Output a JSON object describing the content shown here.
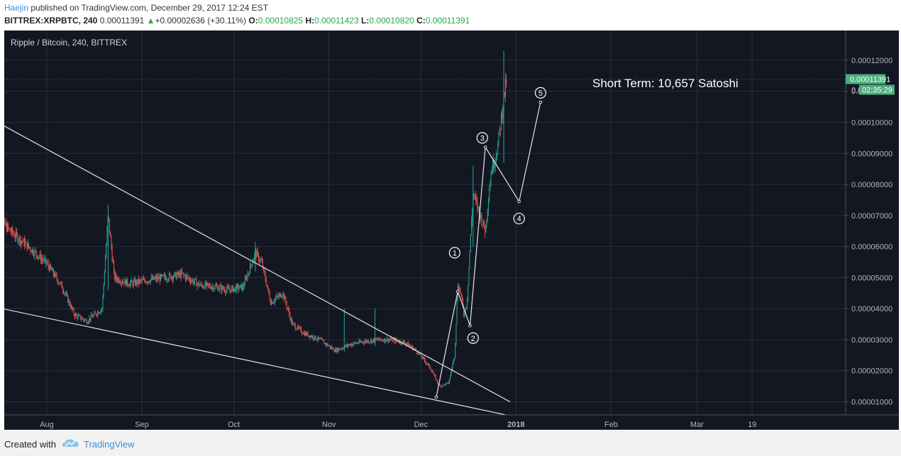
{
  "header": {
    "author": "Haejin",
    "published_text": " published on TradingView.com, December 29, 2017 12:24 EST",
    "symbol": "BITTREX:XRPBTC, 240",
    "last": "0.00011391",
    "up_arrow": "▲",
    "change": "+0.00002636 (+30.11%)",
    "o_label": "O:",
    "o_value": "0.00010825",
    "h_label": "H:",
    "h_value": "0.00011423",
    "l_label": "L:",
    "l_value": "0.00010820",
    "c_label": "C:",
    "c_value": "0.00011391"
  },
  "footer": {
    "created_with": "Created with",
    "brand": "TradingView"
  },
  "colors": {
    "background": "#131722",
    "grid": "#2a2e39",
    "up": "#26a69a",
    "down": "#ef5350",
    "price_tag": "#4caf7d",
    "drawing": "#e6e6e6"
  },
  "chart_data": {
    "type": "candlestick",
    "title": "Ripple / Bitcoin, 240, BITTREX",
    "annotation": "Short Term: 10,657 Satoshi",
    "x_ticks": [
      "Aug",
      "Sep",
      "Oct",
      "Nov",
      "Dec",
      "2018",
      "Feb",
      "Mar",
      "19"
    ],
    "y_ticks": [
      "0.00001000",
      "0.00002000",
      "0.00003000",
      "0.00004000",
      "0.00005000",
      "0.00006000",
      "0.00007000",
      "0.00008000",
      "0.00009000",
      "0.00010000",
      "0.00011000",
      "0.00012000"
    ],
    "y_values": [
      1e-05,
      2e-05,
      3e-05,
      4e-05,
      5e-05,
      6e-05,
      7e-05,
      8e-05,
      9e-05,
      0.0001,
      0.00011,
      0.00012
    ],
    "current_price_label": "0.00011391",
    "current_price": 0.00011391,
    "countdown_label": "02:35:29",
    "countdown_partial": "0.0",
    "price_path": [
      [
        "2017-07-15",
        7.05e-05
      ],
      [
        "2017-07-20",
        6.5e-05
      ],
      [
        "2017-07-26",
        6e-05
      ],
      [
        "2017-08-01",
        5.45e-05
      ],
      [
        "2017-08-06",
        4.7e-05
      ],
      [
        "2017-08-10",
        3.8e-05
      ],
      [
        "2017-08-14",
        3.6e-05
      ],
      [
        "2017-08-19",
        4e-05
      ],
      [
        "2017-08-21",
        7e-05
      ],
      [
        "2017-08-23",
        5e-05
      ],
      [
        "2017-08-28",
        4.8e-05
      ],
      [
        "2017-09-02",
        4.9e-05
      ],
      [
        "2017-09-08",
        5e-05
      ],
      [
        "2017-09-14",
        5.1e-05
      ],
      [
        "2017-09-20",
        4.75e-05
      ],
      [
        "2017-09-25",
        4.7e-05
      ],
      [
        "2017-09-29",
        4.6e-05
      ],
      [
        "2017-10-04",
        4.7e-05
      ],
      [
        "2017-10-08",
        5.8e-05
      ],
      [
        "2017-10-10",
        5.5e-05
      ],
      [
        "2017-10-13",
        4.2e-05
      ],
      [
        "2017-10-17",
        4.5e-05
      ],
      [
        "2017-10-20",
        3.5e-05
      ],
      [
        "2017-10-24",
        3.2e-05
      ],
      [
        "2017-10-29",
        3e-05
      ],
      [
        "2017-11-03",
        2.65e-05
      ],
      [
        "2017-11-08",
        2.85e-05
      ],
      [
        "2017-11-13",
        2.95e-05
      ],
      [
        "2017-11-17",
        3e-05
      ],
      [
        "2017-11-21",
        3e-05
      ],
      [
        "2017-11-26",
        2.9e-05
      ],
      [
        "2017-11-30",
        2.6e-05
      ],
      [
        "2017-12-04",
        2.1e-05
      ],
      [
        "2017-12-07",
        1.5e-05
      ],
      [
        "2017-12-10",
        1.6e-05
      ],
      [
        "2017-12-12",
        2.5e-05
      ],
      [
        "2017-12-13",
        4.8e-05
      ],
      [
        "2017-12-14",
        4.5e-05
      ],
      [
        "2017-12-15",
        3.8e-05
      ],
      [
        "2017-12-16",
        4.2e-05
      ],
      [
        "2017-12-17",
        6e-05
      ],
      [
        "2017-12-18",
        7.7e-05
      ],
      [
        "2017-12-20",
        7.1e-05
      ],
      [
        "2017-12-22",
        6.5e-05
      ],
      [
        "2017-12-23",
        7.6e-05
      ],
      [
        "2017-12-24",
        8.5e-05
      ],
      [
        "2017-12-25",
        8.8e-05
      ],
      [
        "2017-12-26",
        9.2e-05
      ],
      [
        "2017-12-28",
        0.000108
      ],
      [
        "2017-12-29",
        0.0001139
      ]
    ],
    "spikes": [
      [
        "2017-08-21",
        7.35e-05,
        4.6e-05
      ],
      [
        "2017-10-08",
        6.15e-05,
        5.2e-05
      ],
      [
        "2017-11-06",
        4e-05,
        2.6e-05
      ],
      [
        "2017-11-16",
        4e-05,
        2.8e-05
      ],
      [
        "2017-12-18",
        8.6e-05,
        6e-05
      ],
      [
        "2017-12-28",
        0.000123,
        8.7e-05
      ]
    ],
    "trendlines": [
      {
        "from": [
          "2017-07-15",
          0.0001005
        ],
        "to": [
          "2017-12-30",
          1e-05
        ]
      },
      {
        "from": [
          "2017-07-15",
          4.05e-05
        ],
        "to": [
          "2017-12-30",
          5.5e-06
        ]
      }
    ],
    "wave_path": [
      [
        "2017-12-06",
        1.15e-05
      ],
      [
        "2017-12-13",
        4.55e-05
      ],
      [
        "2017-12-17",
        3.45e-05
      ],
      [
        "2017-12-22",
        9.2e-05
      ],
      [
        "2018-01-02",
        7.45e-05
      ],
      [
        "2018-01-09",
        0.0001065
      ]
    ],
    "wave_labels": [
      {
        "label": "1",
        "x": "2017-12-12",
        "y": 5.8e-05
      },
      {
        "label": "2",
        "x": "2017-12-18",
        "y": 3.05e-05
      },
      {
        "label": "3",
        "x": "2017-12-21",
        "y": 9.5e-05
      },
      {
        "label": "4",
        "x": "2018-01-02",
        "y": 6.9e-05
      },
      {
        "label": "5",
        "x": "2018-01-09",
        "y": 0.0001095
      }
    ]
  }
}
